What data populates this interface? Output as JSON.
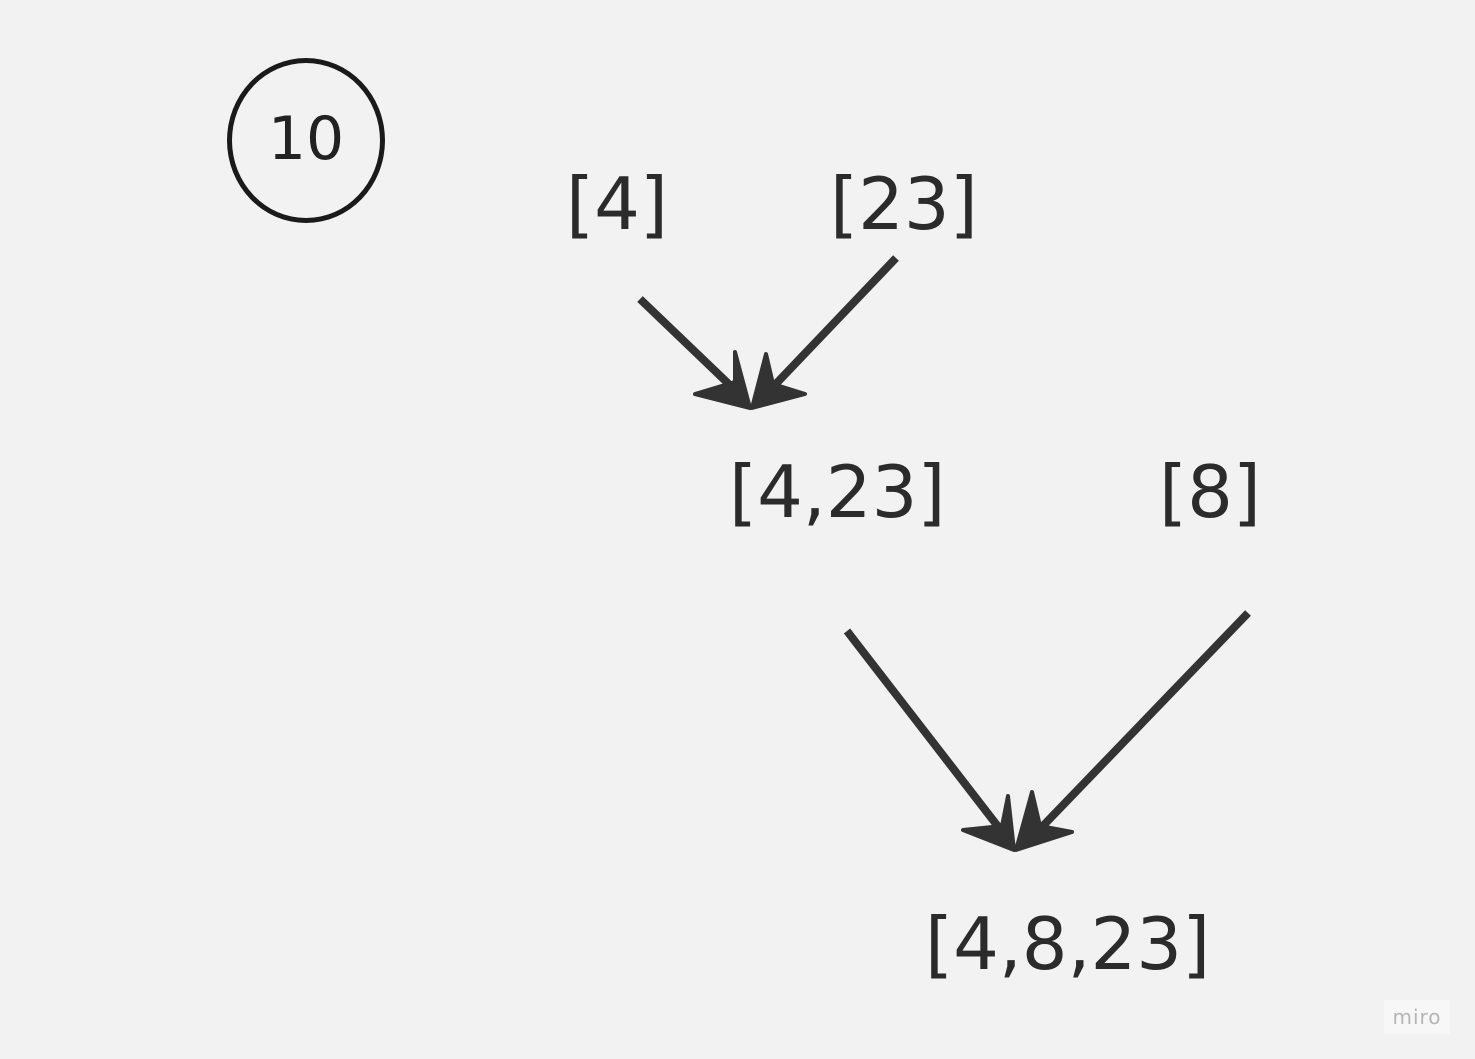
{
  "step": {
    "number": "10"
  },
  "nodes": {
    "n4": "[4]",
    "n23": "[23]",
    "n4_23": "[4,23]",
    "n8": "[8]",
    "n4_8_23": "[4,8,23]"
  },
  "watermark": "miro",
  "colors": {
    "background": "#f2f2f2",
    "stroke": "#333333",
    "text": "#2b2b2b"
  }
}
